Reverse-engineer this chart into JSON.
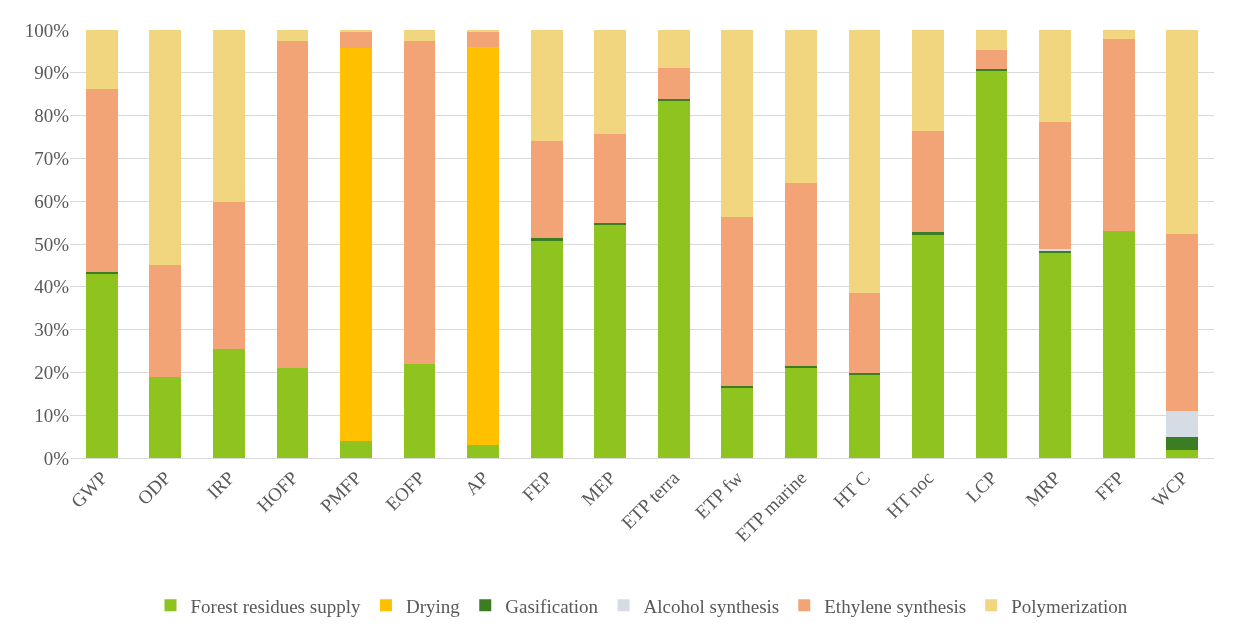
{
  "chart_data": {
    "type": "bar",
    "stacked": true,
    "categories": [
      "GWP",
      "ODP",
      "IRP",
      "HOFP",
      "PMFP",
      "EOFP",
      "AP",
      "FEP",
      "MEP",
      "ETP terra",
      "ETP fw",
      "ETP marine",
      "HT C",
      "HT noc",
      "LCP",
      "MRP",
      "FFP",
      "WCP"
    ],
    "series": [
      {
        "name": "Forest residues supply",
        "color": "#8fc31f",
        "values": [
          43,
          19,
          25.5,
          21,
          4,
          22,
          3,
          50.8,
          54.5,
          83.5,
          16.5,
          21.2,
          19.5,
          52.2,
          90.5,
          48,
          53,
          1.8
        ]
      },
      {
        "name": "Drying",
        "color": "#ffc000",
        "values": [
          0,
          0,
          0,
          0,
          91.7,
          0,
          93,
          0,
          0,
          0,
          0,
          0,
          0,
          0,
          0,
          0,
          0,
          0
        ]
      },
      {
        "name": "Gasification",
        "color": "#3a7d22",
        "values": [
          0.5,
          0,
          0,
          0,
          0,
          0,
          0,
          0.5,
          0.5,
          0.3,
          0.3,
          0.3,
          0.3,
          0.5,
          0.5,
          0.5,
          0,
          3.2
        ]
      },
      {
        "name": "Alcohol synthesis",
        "color": "#d6dce4",
        "values": [
          0,
          0,
          0,
          0,
          0,
          0,
          0,
          0,
          0,
          0,
          0,
          0,
          0,
          0,
          0,
          0.3,
          0,
          6
        ]
      },
      {
        "name": "Ethylene synthesis",
        "color": "#f2a477",
        "values": [
          42.7,
          26,
          34.3,
          76.5,
          3.8,
          75.5,
          3.7,
          22.7,
          20.8,
          7.3,
          39.5,
          42.7,
          18.7,
          23.8,
          4.3,
          29.7,
          44.8,
          41.3
        ]
      },
      {
        "name": "Polymerization",
        "color": "#f2d57f",
        "values": [
          14,
          55,
          40.2,
          2.5,
          0.5,
          2.5,
          0.3,
          26,
          24.2,
          8.9,
          43.7,
          35.8,
          61.5,
          23.5,
          5,
          21.5,
          2.2,
          47.7
        ]
      }
    ],
    "ylim": [
      0,
      100
    ],
    "yticks": [
      {
        "value": 0,
        "label": "0%"
      },
      {
        "value": 10,
        "label": "10%"
      },
      {
        "value": 20,
        "label": "20%"
      },
      {
        "value": 30,
        "label": "30%"
      },
      {
        "value": 40,
        "label": "40%"
      },
      {
        "value": 50,
        "label": "50%"
      },
      {
        "value": 60,
        "label": "60%"
      },
      {
        "value": 70,
        "label": "70%"
      },
      {
        "value": 80,
        "label": "80%"
      },
      {
        "value": 90,
        "label": "90%"
      },
      {
        "value": 100,
        "label": "100%"
      }
    ],
    "grid": "y",
    "legend": "bottom"
  }
}
